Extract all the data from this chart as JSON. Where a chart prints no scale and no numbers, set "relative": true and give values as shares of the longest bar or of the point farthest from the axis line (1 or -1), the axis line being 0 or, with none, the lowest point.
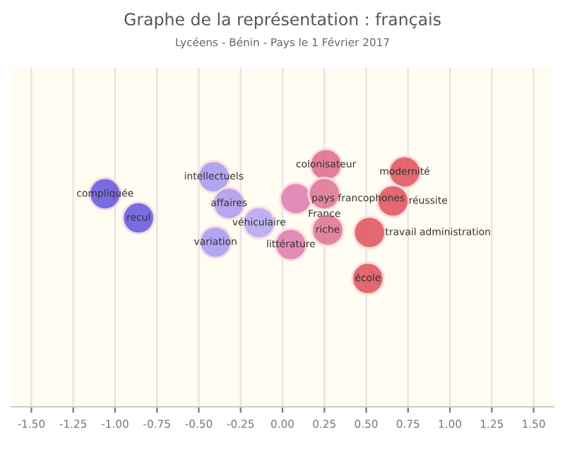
{
  "chart_data": {
    "type": "scatter",
    "title": "Graphe de la représentation : français",
    "subtitle": "Lycéens - Bénin - Pays le 1 Février 2017",
    "relative": true,
    "tick_labels": "x",
    "grid": "x",
    "legend": false,
    "marker": "circle",
    "xlim": [
      -1.62,
      1.62
    ],
    "xticks": [
      {
        "value": -1.5,
        "label": "-1.50"
      },
      {
        "value": -1.25,
        "label": "-1.25"
      },
      {
        "value": -1.0,
        "label": "-1.00"
      },
      {
        "value": -0.75,
        "label": "-0.75"
      },
      {
        "value": -0.5,
        "label": "-0.50"
      },
      {
        "value": -0.25,
        "label": "-0.25"
      },
      {
        "value": 0,
        "label": "0.00"
      },
      {
        "value": 0.25,
        "label": "0.25"
      },
      {
        "value": 0.5,
        "label": "0.50"
      },
      {
        "value": 0.75,
        "label": "0.75"
      },
      {
        "value": 1.0,
        "label": "1.00"
      },
      {
        "value": 1.25,
        "label": "1.25"
      },
      {
        "value": 1.5,
        "label": "1.50"
      }
    ],
    "x": [
      -1.06,
      -0.86,
      -0.41,
      -0.32,
      -0.14,
      -0.4,
      0.08,
      0.05,
      0.26,
      0.25,
      0.27,
      0.73,
      0.66,
      0.52,
      0.51
    ],
    "values": [
      0.88,
      0.78,
      0.95,
      0.84,
      0.76,
      0.68,
      0.86,
      0.67,
      1,
      0.88,
      0.73,
      0.97,
      0.85,
      0.72,
      0.53
    ],
    "colors": [
      "#6a5ce0",
      "#6a5ce0",
      "#a89cf0",
      "#b09cf0",
      "#b8a8f0",
      "#a89cf0",
      "#e080b0",
      "#e080b0",
      "#e07090",
      "#e07898",
      "#e07898",
      "#e05860",
      "#e05860",
      "#e05860",
      "#e05860"
    ],
    "annotations": [
      {
        "text": "compliquée",
        "x": -1.06,
        "y": 0.88
      },
      {
        "text": "recul",
        "x": -0.86,
        "y": 0.78
      },
      {
        "text": "intellectuels",
        "x": -0.41,
        "y": 0.95
      },
      {
        "text": "affaires",
        "x": -0.32,
        "y": 0.84
      },
      {
        "text": "véhiculaire",
        "x": -0.14,
        "y": 0.76
      },
      {
        "text": "variation",
        "x": -0.4,
        "y": 0.68
      },
      {
        "text": "pays francophones",
        "x": 0.08,
        "y": 0.86
      },
      {
        "text": "littérature",
        "x": 0.05,
        "y": 0.67
      },
      {
        "text": "colonisateur",
        "x": 0.26,
        "y": 1
      },
      {
        "text": "France",
        "x": 0.25,
        "y": 0.88
      },
      {
        "text": "riche",
        "x": 0.27,
        "y": 0.73
      },
      {
        "text": "modernité",
        "x": 0.73,
        "y": 0.97
      },
      {
        "text": "réussite",
        "x": 0.66,
        "y": 0.85
      },
      {
        "text": "travail administration",
        "x": 0.52,
        "y": 0.72
      },
      {
        "text": "école",
        "x": 0.51,
        "y": 0.53
      }
    ]
  }
}
